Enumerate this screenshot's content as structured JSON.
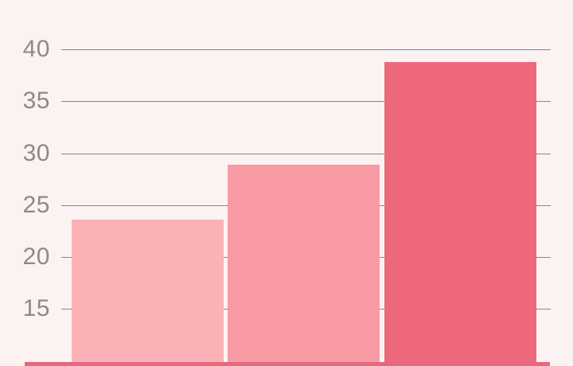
{
  "chart_data": {
    "type": "bar",
    "categories": [
      "",
      "",
      ""
    ],
    "values": [
      23.6,
      28.9,
      38.8
    ],
    "title": "",
    "xlabel": "",
    "ylabel": "",
    "yticks": [
      40,
      35,
      30,
      25,
      20,
      15
    ],
    "ytick_labels": [
      "40",
      "35",
      "30",
      "25",
      "20",
      "15"
    ],
    "ylim": [
      15,
      40
    ],
    "grid": true,
    "legend": false,
    "bar_colors": [
      "#fbb1b5",
      "#f89aa4",
      "#ee687b"
    ],
    "cropped_bottom": true
  },
  "colors": {
    "background": "#fcf2f2",
    "gridline": "#8b8589",
    "tick_label": "#8e888b",
    "baseline": "#e5697e"
  }
}
